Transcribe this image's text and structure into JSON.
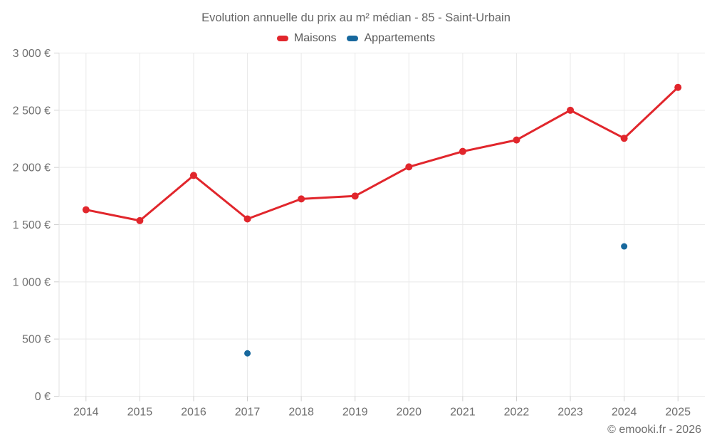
{
  "page": {
    "title": "Evolution annuelle du prix au m² médian - 85 - Saint-Urbain",
    "credit": "© emooki.fr - 2026"
  },
  "chart_data": {
    "type": "line",
    "title": "Evolution annuelle du prix au m² médian - 85 - Saint-Urbain",
    "categories": [
      "2014",
      "2015",
      "2016",
      "2017",
      "2018",
      "2019",
      "2020",
      "2021",
      "2022",
      "2023",
      "2024",
      "2025"
    ],
    "series": [
      {
        "name": "Maisons",
        "color": "#e1262c",
        "marker_radius": 5,
        "line": true,
        "values": [
          1630,
          1535,
          1930,
          1550,
          1725,
          1750,
          2005,
          2140,
          2240,
          2500,
          2255,
          2700
        ]
      },
      {
        "name": "Appartements",
        "color": "#17689d",
        "marker_radius": 4.5,
        "line": true,
        "values": [
          null,
          null,
          null,
          375,
          null,
          null,
          null,
          null,
          null,
          null,
          1310,
          null
        ]
      }
    ],
    "ylim": [
      0,
      3000
    ],
    "y_ticks": [
      0,
      500,
      1000,
      1500,
      2000,
      2500,
      3000
    ],
    "y_tick_labels": [
      "0 €",
      "500 €",
      "1 000 €",
      "1 500 €",
      "2 000 €",
      "2 500 €",
      "3 000 €"
    ],
    "xlabel": "",
    "ylabel": "",
    "grid": true,
    "legend_position": "top",
    "colors": {
      "grid": "#e9e9e9",
      "axis": "#e2e2e2",
      "tick": "#d0d0d0",
      "tick_text": "#6f6f6f",
      "title_text": "#666666"
    }
  }
}
